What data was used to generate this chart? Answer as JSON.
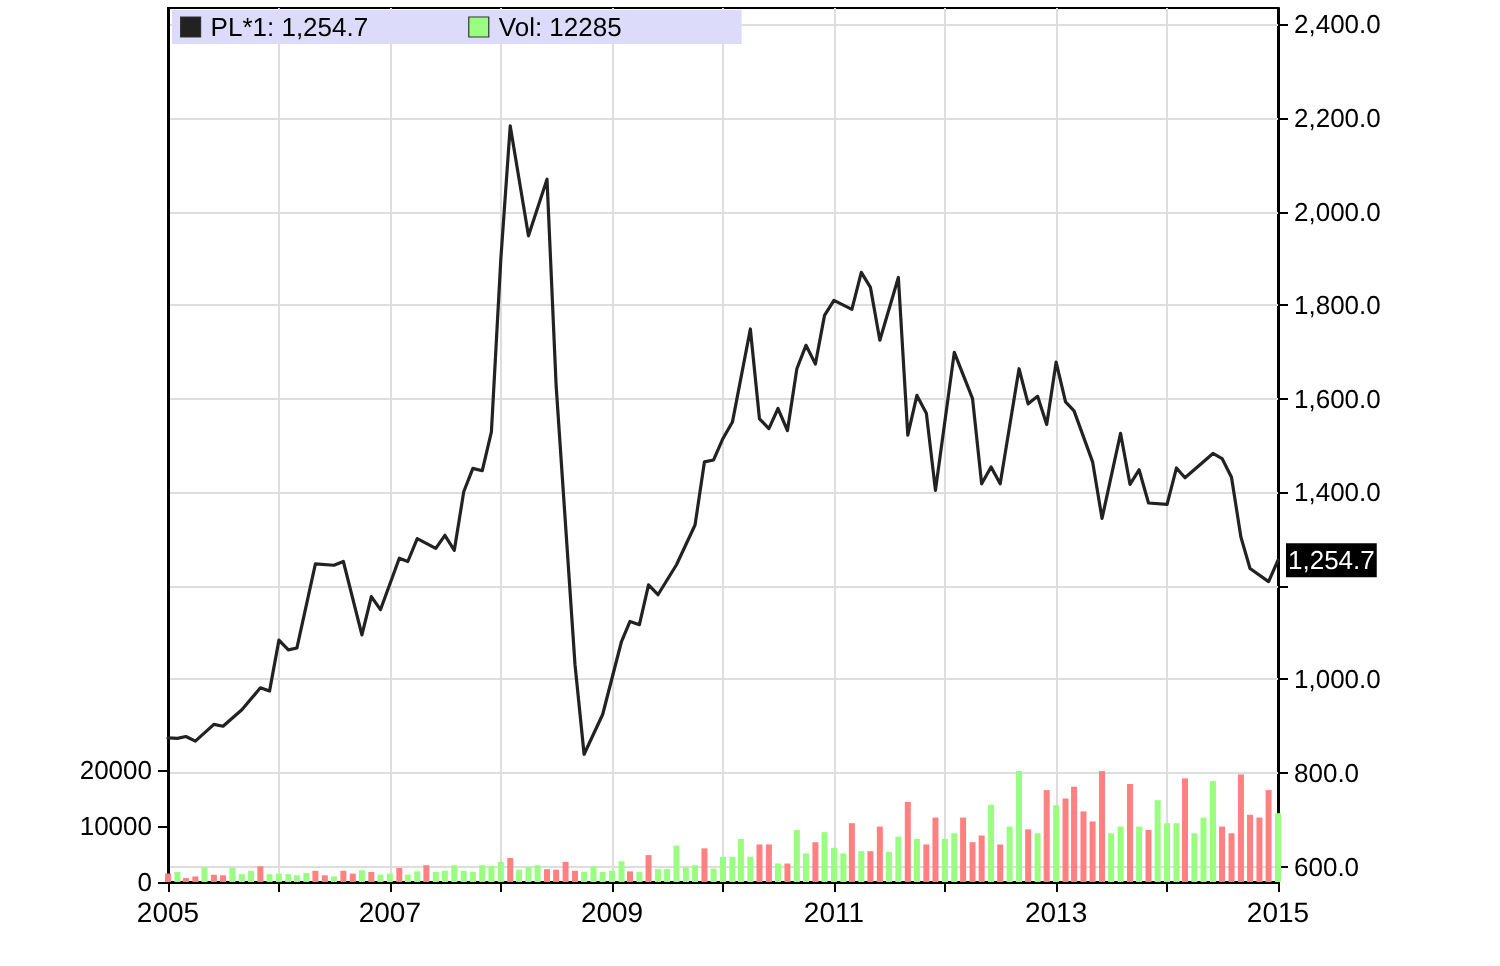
{
  "chart_data": {
    "type": "line",
    "series": [
      {
        "name": "PL*1: 1,254.7",
        "color": "#222222",
        "x": [
          "2005-01",
          "2005-02",
          "2005-03",
          "2005-04",
          "2005-06",
          "2005-07",
          "2005-09",
          "2005-11",
          "2005-12",
          "2006-01",
          "2006-02",
          "2006-03",
          "2006-05",
          "2006-07",
          "2006-08",
          "2006-10",
          "2006-11",
          "2006-12",
          "2007-02",
          "2007-03",
          "2007-04",
          "2007-06",
          "2007-07",
          "2007-08",
          "2007-09",
          "2007-10",
          "2007-11",
          "2007-12",
          "2008-01",
          "2008-02",
          "2008-04",
          "2008-06",
          "2008-07",
          "2008-09",
          "2008-10",
          "2008-12",
          "2009-02",
          "2009-03",
          "2009-04",
          "2009-05",
          "2009-06",
          "2009-08",
          "2009-10",
          "2009-11",
          "2009-12",
          "2010-01",
          "2010-02",
          "2010-04",
          "2010-05",
          "2010-06",
          "2010-07",
          "2010-08",
          "2010-09",
          "2010-10",
          "2010-11",
          "2010-12",
          "2011-01",
          "2011-03",
          "2011-04",
          "2011-05",
          "2011-06",
          "2011-08",
          "2011-09",
          "2011-10",
          "2011-11",
          "2011-12",
          "2012-02",
          "2012-04",
          "2012-05",
          "2012-06",
          "2012-07",
          "2012-09",
          "2012-10",
          "2012-11",
          "2012-12",
          "2013-01",
          "2013-02",
          "2013-03",
          "2013-05",
          "2013-06",
          "2013-08",
          "2013-09",
          "2013-10",
          "2013-11",
          "2014-01",
          "2014-02",
          "2014-03",
          "2014-06",
          "2014-07",
          "2014-08",
          "2014-09",
          "2014-10",
          "2014-12",
          "2015-01"
        ],
        "values": [
          875,
          874,
          878,
          868,
          904,
          900,
          935,
          982,
          975,
          1084,
          1063,
          1067,
          1247,
          1244,
          1252,
          1095,
          1177,
          1149,
          1259,
          1252,
          1301,
          1280,
          1308,
          1276,
          1401,
          1451,
          1446,
          1529,
          1898,
          2183,
          1948,
          2069,
          1628,
          1032,
          840,
          925,
          1081,
          1124,
          1117,
          1202,
          1181,
          1245,
          1330,
          1465,
          1469,
          1515,
          1550,
          1749,
          1557,
          1536,
          1579,
          1532,
          1664,
          1714,
          1674,
          1778,
          1810,
          1791,
          1870,
          1838,
          1725,
          1859,
          1522,
          1607,
          1569,
          1404,
          1699,
          1600,
          1418,
          1454,
          1418,
          1664,
          1589,
          1605,
          1545,
          1678,
          1593,
          1574,
          1465,
          1344,
          1526,
          1417,
          1448,
          1377,
          1374,
          1452,
          1431,
          1483,
          1472,
          1432,
          1304,
          1237,
          1209,
          1254.7
        ]
      },
      {
        "name": "Vol: 12285",
        "type": "bar",
        "axis": "y2",
        "color": "#99ff80",
        "x": [
          "2005-01",
          "2005-02",
          "2005-03",
          "2005-04",
          "2005-05",
          "2005-06",
          "2005-07",
          "2005-08",
          "2005-09",
          "2005-10",
          "2005-11",
          "2005-12",
          "2006-01",
          "2006-02",
          "2006-03",
          "2006-04",
          "2006-05",
          "2006-06",
          "2006-07",
          "2006-08",
          "2006-09",
          "2006-10",
          "2006-11",
          "2006-12",
          "2007-01",
          "2007-02",
          "2007-03",
          "2007-04",
          "2007-05",
          "2007-06",
          "2007-07",
          "2007-08",
          "2007-09",
          "2007-10",
          "2007-11",
          "2007-12",
          "2008-01",
          "2008-02",
          "2008-03",
          "2008-04",
          "2008-05",
          "2008-06",
          "2008-07",
          "2008-08",
          "2008-09",
          "2008-10",
          "2008-11",
          "2008-12",
          "2009-01",
          "2009-02",
          "2009-03",
          "2009-04",
          "2009-05",
          "2009-06",
          "2009-07",
          "2009-08",
          "2009-09",
          "2009-10",
          "2009-11",
          "2009-12",
          "2010-01",
          "2010-02",
          "2010-03",
          "2010-04",
          "2010-05",
          "2010-06",
          "2010-07",
          "2010-08",
          "2010-09",
          "2010-10",
          "2010-11",
          "2010-12",
          "2011-01",
          "2011-02",
          "2011-03",
          "2011-04",
          "2011-05",
          "2011-06",
          "2011-07",
          "2011-08",
          "2011-09",
          "2011-10",
          "2011-11",
          "2011-12",
          "2012-01",
          "2012-02",
          "2012-03",
          "2012-04",
          "2012-05",
          "2012-06",
          "2012-07",
          "2012-08",
          "2012-09",
          "2012-10",
          "2012-11",
          "2012-12",
          "2013-01",
          "2013-02",
          "2013-03",
          "2013-04",
          "2013-05",
          "2013-06",
          "2013-07",
          "2013-08",
          "2013-09",
          "2013-10",
          "2013-11",
          "2013-12",
          "2014-01",
          "2014-02",
          "2014-03",
          "2014-04",
          "2014-05",
          "2014-06",
          "2014-07",
          "2014-08",
          "2014-09",
          "2014-10",
          "2014-11",
          "2014-12",
          "2015-01"
        ],
        "values": [
          1500,
          1800,
          700,
          1000,
          2600,
          1300,
          1200,
          2500,
          1400,
          2000,
          2800,
          1400,
          1500,
          1400,
          1200,
          1600,
          2000,
          1200,
          1000,
          2000,
          1500,
          2100,
          1800,
          1300,
          1500,
          2500,
          1300,
          1900,
          3000,
          1800,
          2000,
          3000,
          2000,
          1800,
          3000,
          2900,
          3600,
          4300,
          2200,
          2700,
          3000,
          2300,
          2200,
          3600,
          2000,
          1800,
          2800,
          1800,
          2000,
          3700,
          1900,
          1800,
          4800,
          2300,
          2300,
          6500,
          2600,
          3000,
          6000,
          2400,
          4500,
          4500,
          7700,
          4500,
          6700,
          6700,
          3300,
          3300,
          9300,
          5100,
          7100,
          8900,
          6100,
          5100,
          10500,
          5500,
          5500,
          9900,
          5400,
          8100,
          14300,
          7700,
          6700,
          11500,
          7700,
          8700,
          11500,
          7100,
          8300,
          13800,
          6700,
          9900,
          19800,
          9400,
          8700,
          16400,
          13700,
          14900,
          17000,
          12600,
          10800,
          19800,
          8700,
          9900,
          17500,
          9900,
          9300,
          14600,
          10500,
          10500,
          18500,
          8700,
          11500,
          18000,
          9900,
          8700,
          19200,
          12000,
          11500,
          16400,
          12285
        ],
        "colors": [
          "#ff8080",
          "#99ff80",
          "#ff8080",
          "#ff8080",
          "#99ff80",
          "#ff8080",
          "#ff8080",
          "#99ff80",
          "#99ff80",
          "#99ff80",
          "#ff8080",
          "#99ff80",
          "#99ff80",
          "#99ff80",
          "#99ff80",
          "#99ff80",
          "#ff8080",
          "#ff8080",
          "#99ff80",
          "#ff8080",
          "#ff8080",
          "#99ff80",
          "#ff8080",
          "#99ff80",
          "#99ff80",
          "#ff8080",
          "#99ff80",
          "#99ff80",
          "#ff8080",
          "#99ff80",
          "#99ff80",
          "#99ff80",
          "#99ff80",
          "#99ff80",
          "#99ff80",
          "#99ff80",
          "#99ff80",
          "#ff8080",
          "#99ff80",
          "#99ff80",
          "#99ff80",
          "#ff8080",
          "#ff8080",
          "#ff8080",
          "#ff8080",
          "#99ff80",
          "#99ff80",
          "#99ff80",
          "#99ff80",
          "#99ff80",
          "#ff8080",
          "#99ff80",
          "#ff8080",
          "#99ff80",
          "#99ff80",
          "#99ff80",
          "#99ff80",
          "#99ff80",
          "#ff8080",
          "#99ff80",
          "#99ff80",
          "#99ff80",
          "#99ff80",
          "#99ff80",
          "#ff8080",
          "#ff8080",
          "#99ff80",
          "#ff8080",
          "#99ff80",
          "#99ff80",
          "#ff8080",
          "#99ff80",
          "#99ff80",
          "#99ff80",
          "#ff8080",
          "#99ff80",
          "#ff8080",
          "#ff8080",
          "#99ff80",
          "#99ff80",
          "#ff8080",
          "#99ff80",
          "#ff8080",
          "#ff8080",
          "#99ff80",
          "#99ff80",
          "#ff8080",
          "#ff8080",
          "#ff8080",
          "#99ff80",
          "#ff8080",
          "#99ff80",
          "#99ff80",
          "#ff8080",
          "#99ff80",
          "#ff8080",
          "#99ff80",
          "#ff8080",
          "#ff8080",
          "#ff8080",
          "#ff8080",
          "#ff8080",
          "#99ff80",
          "#99ff80",
          "#ff8080",
          "#99ff80",
          "#ff8080",
          "#99ff80",
          "#99ff80",
          "#99ff80",
          "#ff8080",
          "#99ff80",
          "#99ff80",
          "#99ff80",
          "#ff8080",
          "#ff8080",
          "#ff8080",
          "#ff8080",
          "#ff8080",
          "#ff8080",
          "#99ff80"
        ]
      }
    ],
    "xlim": [
      "2005-01",
      "2015-01"
    ],
    "xticks": [
      "2005",
      {
        "value": "2006",
        "label": null
      },
      "2007",
      {
        "value": "2008",
        "label": null
      },
      "2009",
      {
        "value": "2010",
        "label": null
      },
      "2011",
      {
        "value": "2012",
        "label": null
      },
      "2013",
      {
        "value": "2014",
        "label": null
      },
      "2015"
    ],
    "ylim": [
      567,
      2435
    ],
    "yticks": [
      {
        "value": 600,
        "label": "600.0"
      },
      {
        "value": 800,
        "label": "800.0"
      },
      {
        "value": 1000,
        "label": "1,000.0"
      },
      {
        "value": 1200,
        "label": null
      },
      {
        "value": 1400,
        "label": "1,400.0"
      },
      {
        "value": 1600,
        "label": "1,600.0"
      },
      {
        "value": 1800,
        "label": "1,800.0"
      },
      {
        "value": 2000,
        "label": "2,000.0"
      },
      {
        "value": 2200,
        "label": "2,200.0"
      },
      {
        "value": 2400,
        "label": "2,400.0"
      }
    ],
    "y2lim": [
      0,
      156000
    ],
    "y2ticks": [
      0,
      10000,
      20000
    ],
    "annotations": [
      {
        "text": "1,254.7",
        "x": "2015-01",
        "y": 1254.7
      }
    ],
    "grid": true,
    "legend": "top left",
    "marker": "none",
    "line_style": "solid"
  }
}
